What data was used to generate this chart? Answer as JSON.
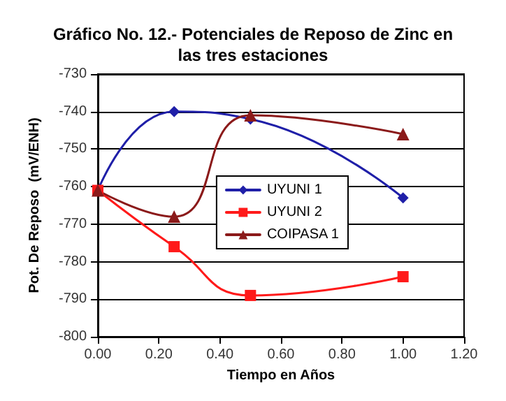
{
  "chart_data": {
    "type": "line",
    "title": "Gráfico No. 12.- Potenciales de Reposo de Zinc en\nlas tres estaciones",
    "xlabel": "Tiempo en Años",
    "ylabel": "Pot. De Reposo  (mV/ENH)",
    "x": [
      0,
      0.25,
      0.5,
      1
    ],
    "series": [
      {
        "name": "UYUNI 1",
        "color": "#1f1fa8",
        "marker": "diamond",
        "values": [
          -761,
          -740,
          -742,
          -763
        ]
      },
      {
        "name": "UYUNI 2",
        "color": "#ff1a1a",
        "marker": "square",
        "values": [
          -761,
          -776,
          -789,
          -784
        ]
      },
      {
        "name": "COIPASA 1",
        "color": "#8b1a1a",
        "marker": "triangle",
        "values": [
          -761,
          -768,
          -741,
          -746
        ]
      }
    ],
    "xlim": [
      0,
      1.2
    ],
    "xticks": [
      {
        "value": 0,
        "label": "0.00"
      },
      {
        "value": 0.2,
        "label": "0.20"
      },
      {
        "value": 0.4,
        "label": "0.40"
      },
      {
        "value": 0.6,
        "label": "0.60"
      },
      {
        "value": 0.8,
        "label": "0.80"
      },
      {
        "value": 1,
        "label": "1.00"
      },
      {
        "value": 1.2,
        "label": "1.20"
      }
    ],
    "ylim": [
      -800,
      -730
    ],
    "yticks": [
      -800,
      -790,
      -780,
      -770,
      -760,
      -750,
      -740,
      -730
    ],
    "grid": "y",
    "legend": "center right",
    "line_style": "solid"
  }
}
